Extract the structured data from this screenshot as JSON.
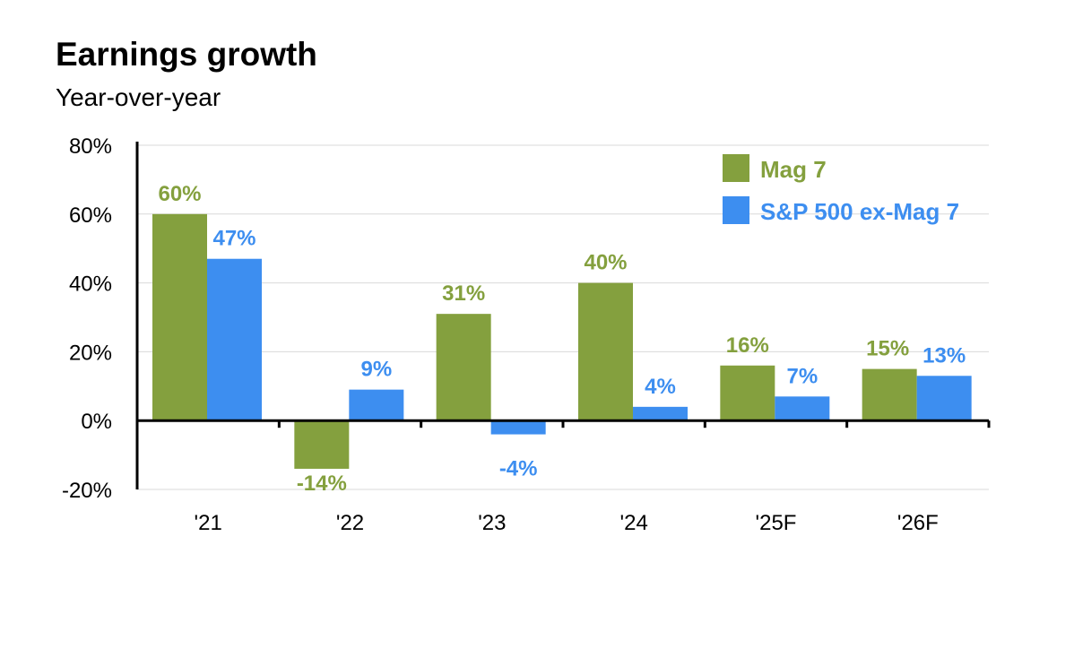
{
  "chart_data": {
    "type": "bar",
    "title": "Earnings growth",
    "subtitle": "Year-over-year",
    "categories": [
      "'21",
      "'22",
      "'23",
      "'24",
      "'25F",
      "'26F"
    ],
    "series": [
      {
        "name": "Mag 7",
        "color": "#84a03e",
        "values": [
          60,
          -14,
          31,
          40,
          16,
          15
        ],
        "labels": [
          "60%",
          "-14%",
          "31%",
          "40%",
          "16%",
          "15%"
        ]
      },
      {
        "name": "S&P 500 ex-Mag 7",
        "color": "#3d8ef0",
        "values": [
          47,
          9,
          -4,
          4,
          7,
          13
        ],
        "labels": [
          "47%",
          "9%",
          "-4%",
          "4%",
          "7%",
          "13%"
        ]
      }
    ],
    "ylim": [
      -20,
      80
    ],
    "yticks": [
      80,
      60,
      40,
      20,
      0,
      -20
    ],
    "ytick_labels": [
      "80%",
      "60%",
      "40%",
      "20%",
      "0%",
      "-20%"
    ],
    "grid": true,
    "legend_position": "top-right"
  }
}
